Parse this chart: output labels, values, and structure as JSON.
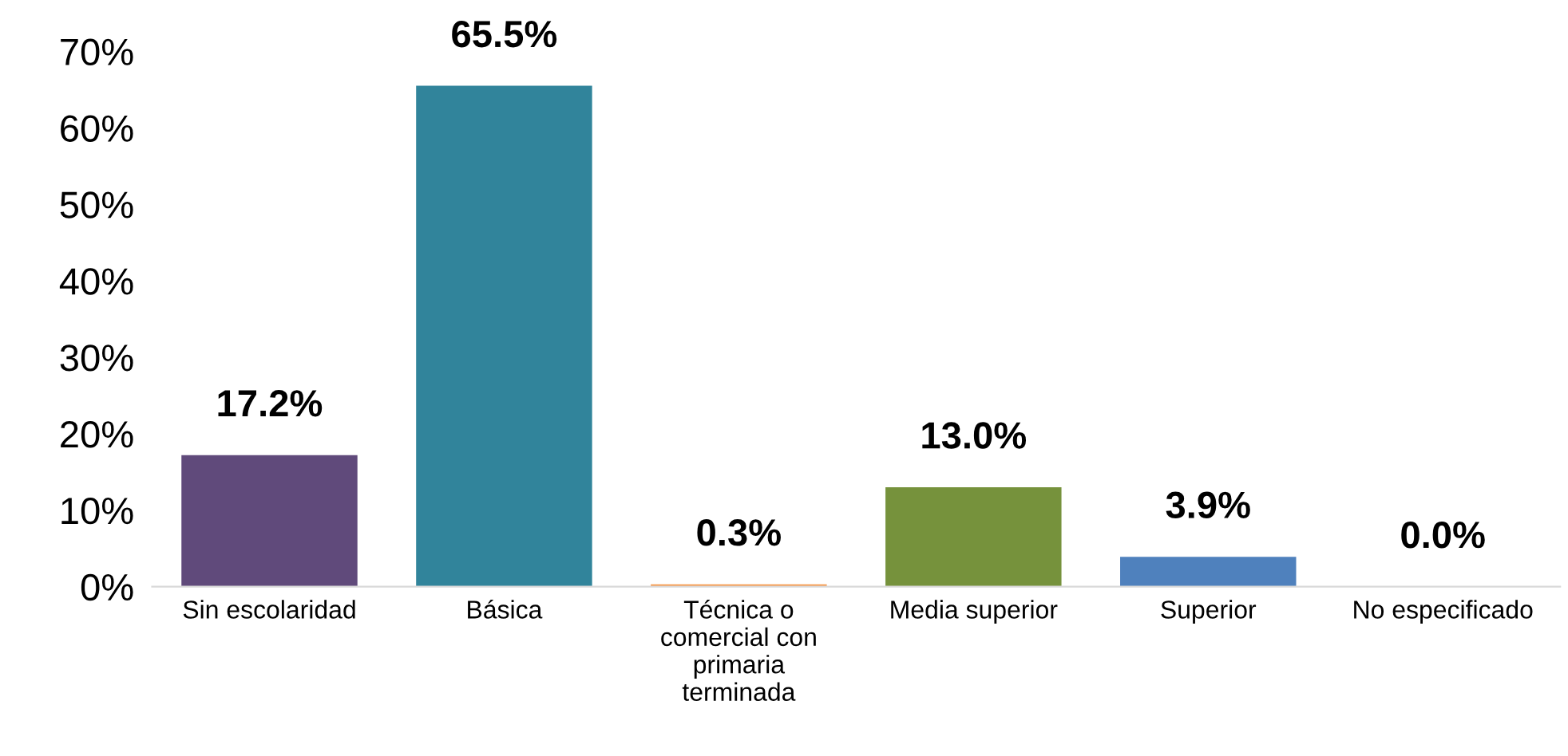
{
  "chart_data": {
    "type": "bar",
    "categories": [
      "Sin escolaridad",
      "Básica",
      "Técnica o\ncomercial con\nprimaria\nterminada",
      "Media superior",
      "Superior",
      "No especificado"
    ],
    "values": [
      17.2,
      65.5,
      0.3,
      13.0,
      3.9,
      0.0
    ],
    "colors": [
      "#604a7b",
      "#31849b",
      "#f79646",
      "#76923c",
      "#4f81bd",
      "#8064a2"
    ],
    "value_labels": [
      "17.2%",
      "65.5%",
      "0.3%",
      "13.0%",
      "3.9%",
      "0.0%"
    ],
    "ylim": [
      0,
      70
    ],
    "yticks": [
      {
        "value": 0,
        "label": "0%"
      },
      {
        "value": 10,
        "label": "10%"
      },
      {
        "value": 20,
        "label": "20%"
      },
      {
        "value": 30,
        "label": "30%"
      },
      {
        "value": 40,
        "label": "40%"
      },
      {
        "value": 50,
        "label": "50%"
      },
      {
        "value": 60,
        "label": "60%"
      },
      {
        "value": 70,
        "label": "70%"
      }
    ],
    "grid": false,
    "legend": false
  }
}
